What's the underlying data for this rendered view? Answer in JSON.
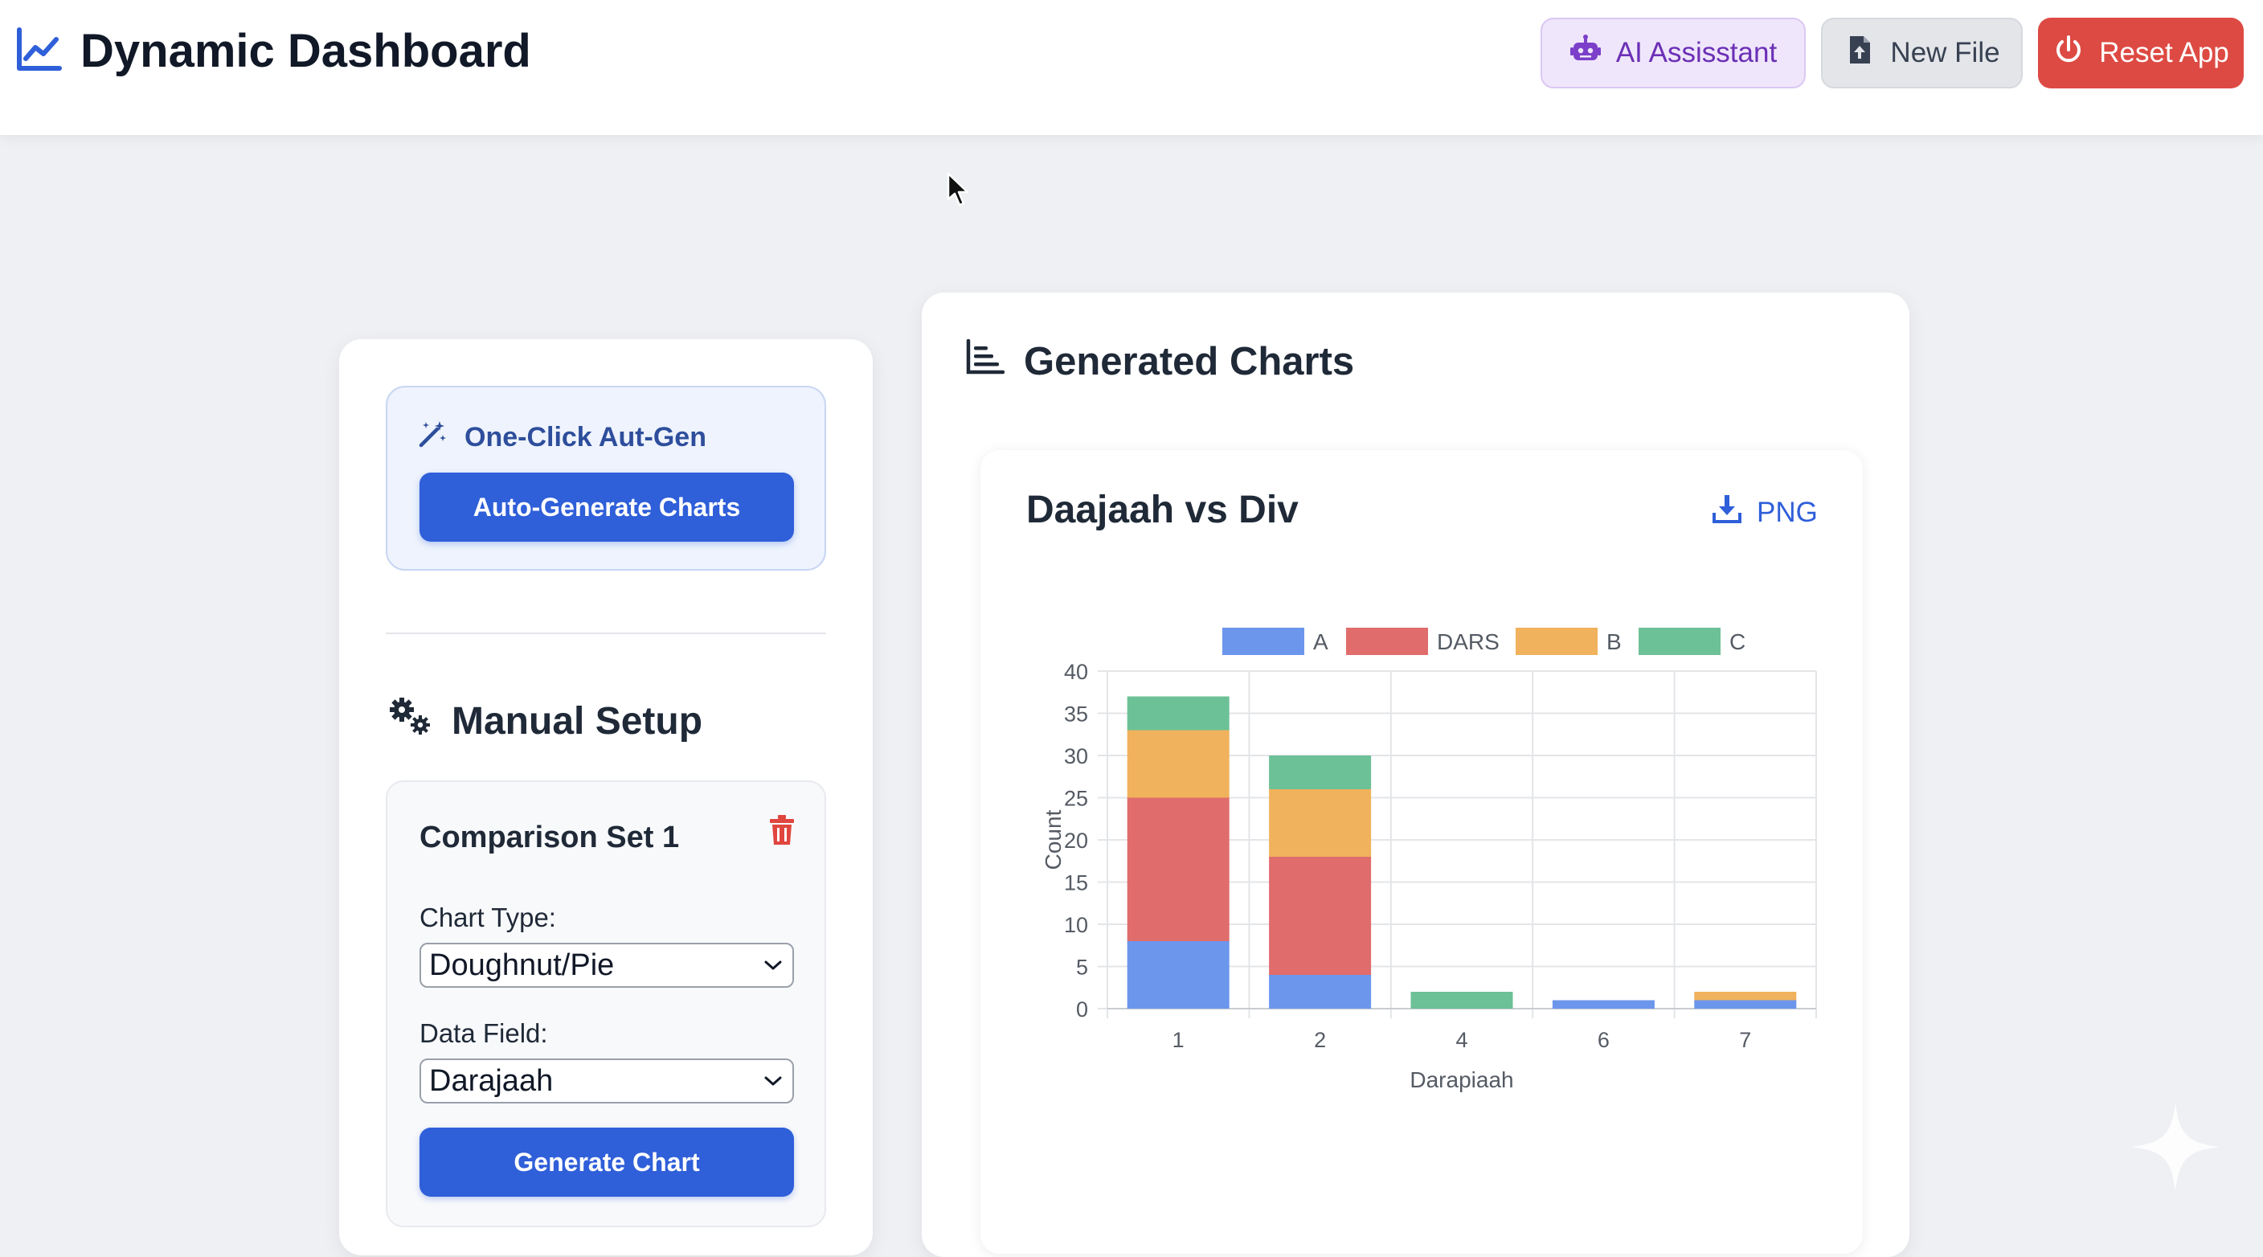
{
  "header": {
    "title": "Dynamic Dashboard",
    "buttons": {
      "ai_assistant": "AI Assisstant",
      "new_file": "New File",
      "reset_app": "Reset App"
    }
  },
  "sidebar": {
    "auto_card": {
      "title": "One-Click Aut-Gen",
      "button": "Auto-Generate Charts"
    },
    "manual_setup": {
      "title": "Manual Setup",
      "set_title": "Comparison Set 1",
      "chart_type_label": "Chart Type:",
      "chart_type_value": "Doughnut/Pie",
      "data_field_label": "Data Field:",
      "data_field_value": "Darajaah",
      "generate_button": "Generate Chart"
    }
  },
  "main": {
    "section_title": "Generated Charts",
    "chart_card": {
      "title": "Daajaah vs Div",
      "download_label": "PNG"
    }
  },
  "colors": {
    "primary": "#2f5fd9",
    "danger": "#dd4a43",
    "ai": "#6b2fb5"
  },
  "chart_data": {
    "type": "bar",
    "stacked": true,
    "categories": [
      "1",
      "2",
      "4",
      "6",
      "7"
    ],
    "series": [
      {
        "name": "A",
        "color": "#6b96ec",
        "values": [
          8,
          4,
          0,
          1,
          1
        ]
      },
      {
        "name": "DARS",
        "color": "#e06c6c",
        "values": [
          17,
          14,
          0,
          0,
          0
        ]
      },
      {
        "name": "B",
        "color": "#f0b25c",
        "values": [
          8,
          8,
          0,
          0,
          1
        ]
      },
      {
        "name": "C",
        "color": "#6cc196",
        "values": [
          4,
          4,
          2,
          0,
          0
        ]
      }
    ],
    "y_ticks": [
      "0",
      "5",
      "10",
      "15",
      "20",
      "25",
      "30",
      "35",
      "40"
    ],
    "ylim": [
      0,
      40
    ],
    "xlabel": "Darapiaah",
    "ylabel": "Count",
    "legend_position": "top",
    "grid": true
  }
}
